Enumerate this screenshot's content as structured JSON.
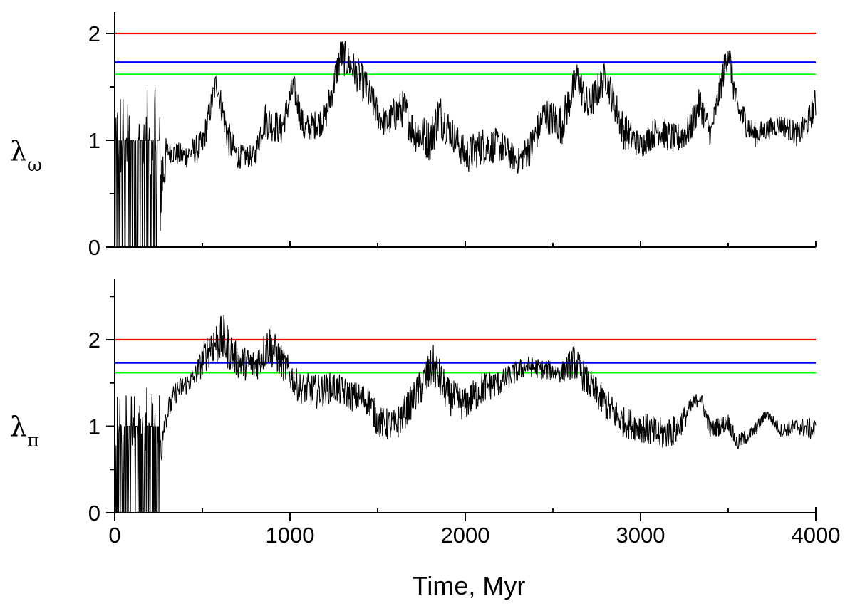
{
  "chart_data": [
    {
      "type": "line",
      "ylabel_symbol": "λ",
      "ylabel_subscript": "ω",
      "xlim": [
        0,
        4000
      ],
      "ylim": [
        0,
        2.2
      ],
      "yticks": [
        0,
        1,
        2
      ],
      "yticks_minor": [
        0.5,
        1.5
      ],
      "xticks_minor": [
        500,
        1000,
        1500,
        2000,
        2500,
        3000,
        3500
      ],
      "hlines": [
        {
          "y": 2.0,
          "color": "#ff0000"
        },
        {
          "y": 1.732,
          "color": "#0000ff"
        },
        {
          "y": 1.618,
          "color": "#00ff00"
        }
      ],
      "series_color": "#000000",
      "noise_series": {
        "x": [
          0,
          100,
          250,
          300,
          400,
          500,
          580,
          650,
          700,
          800,
          850,
          950,
          1020,
          1080,
          1150,
          1200,
          1290,
          1350,
          1430,
          1500,
          1550,
          1600,
          1650,
          1700,
          1800,
          1850,
          1950,
          2000,
          2100,
          2200,
          2300,
          2380,
          2450,
          2550,
          2640,
          2700,
          2800,
          2900,
          3000,
          3100,
          3200,
          3280,
          3340,
          3400,
          3500,
          3550,
          3650,
          3720,
          3800,
          3900,
          3950,
          4000
        ],
        "center": [
          0.5,
          0.5,
          0.5,
          0.9,
          0.85,
          0.95,
          1.55,
          1.0,
          0.85,
          0.85,
          1.2,
          1.1,
          1.5,
          1.1,
          1.15,
          1.2,
          1.8,
          1.7,
          1.5,
          1.25,
          1.15,
          1.25,
          1.3,
          1.1,
          1.0,
          1.25,
          1.0,
          0.85,
          0.95,
          0.95,
          0.8,
          0.95,
          1.25,
          1.15,
          1.6,
          1.3,
          1.6,
          1.1,
          0.95,
          1.1,
          1.0,
          1.1,
          1.35,
          1.05,
          1.85,
          1.3,
          1.05,
          1.1,
          1.15,
          1.05,
          1.15,
          1.35
        ],
        "spread": [
          0.7,
          0.7,
          0.7,
          0.1,
          0.12,
          0.15,
          0.12,
          0.18,
          0.12,
          0.1,
          0.18,
          0.15,
          0.14,
          0.14,
          0.14,
          0.14,
          0.18,
          0.16,
          0.18,
          0.15,
          0.14,
          0.18,
          0.18,
          0.2,
          0.2,
          0.22,
          0.15,
          0.18,
          0.18,
          0.16,
          0.12,
          0.18,
          0.16,
          0.2,
          0.16,
          0.18,
          0.15,
          0.18,
          0.12,
          0.15,
          0.15,
          0.15,
          0.16,
          0.12,
          0.16,
          0.16,
          0.12,
          0.1,
          0.1,
          0.12,
          0.12,
          0.16
        ]
      }
    },
    {
      "type": "line",
      "ylabel_symbol": "λ",
      "ylabel_subscript": "π",
      "xlabel": "Time, Myr",
      "xlim": [
        0,
        4000
      ],
      "ylim": [
        0,
        2.7
      ],
      "yticks": [
        0,
        1,
        2
      ],
      "yticks_minor": [
        0.5,
        1.5,
        2.5
      ],
      "xticks": [
        0,
        1000,
        2000,
        3000,
        4000
      ],
      "xticks_minor": [
        500,
        1500,
        2500,
        3500
      ],
      "hlines": [
        {
          "y": 2.0,
          "color": "#ff0000"
        },
        {
          "y": 1.732,
          "color": "#0000ff"
        },
        {
          "y": 1.618,
          "color": "#00ff00"
        }
      ],
      "series_color": "#000000",
      "noise_series": {
        "x": [
          0,
          100,
          250,
          280,
          350,
          450,
          550,
          620,
          700,
          800,
          880,
          950,
          1050,
          1150,
          1250,
          1350,
          1450,
          1500,
          1600,
          1700,
          1820,
          1900,
          2000,
          2100,
          2200,
          2350,
          2450,
          2550,
          2620,
          2700,
          2800,
          2900,
          3000,
          3100,
          3200,
          3300,
          3340,
          3400,
          3500,
          3550,
          3650,
          3720,
          3800,
          3900,
          4000
        ],
        "center": [
          0.6,
          0.6,
          0.6,
          1.05,
          1.4,
          1.55,
          1.95,
          2.0,
          1.75,
          1.7,
          1.95,
          1.75,
          1.45,
          1.4,
          1.45,
          1.35,
          1.3,
          1.05,
          1.0,
          1.3,
          1.7,
          1.35,
          1.25,
          1.45,
          1.5,
          1.7,
          1.65,
          1.62,
          1.75,
          1.5,
          1.25,
          1.05,
          1.0,
          0.9,
          0.95,
          1.25,
          1.35,
          0.95,
          1.05,
          0.8,
          0.95,
          1.15,
          0.95,
          1.0,
          0.95
        ],
        "spread": [
          0.75,
          0.75,
          0.75,
          0.15,
          0.14,
          0.12,
          0.25,
          0.3,
          0.2,
          0.2,
          0.25,
          0.2,
          0.18,
          0.2,
          0.18,
          0.18,
          0.18,
          0.18,
          0.2,
          0.2,
          0.25,
          0.22,
          0.2,
          0.2,
          0.15,
          0.12,
          0.12,
          0.12,
          0.2,
          0.18,
          0.2,
          0.18,
          0.18,
          0.2,
          0.18,
          0.1,
          0.08,
          0.12,
          0.1,
          0.1,
          0.08,
          0.06,
          0.08,
          0.1,
          0.14
        ]
      }
    }
  ]
}
